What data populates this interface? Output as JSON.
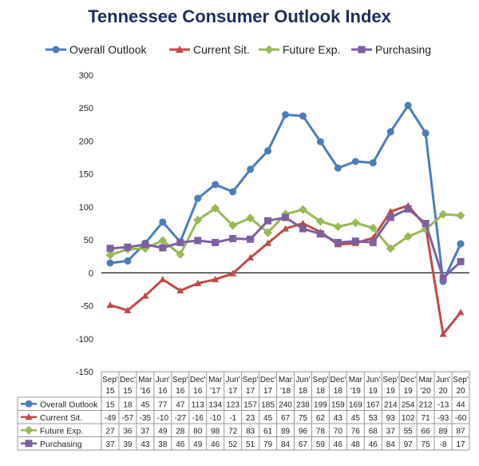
{
  "chart_data": {
    "type": "line",
    "title": "Tennessee Consumer Outlook Index",
    "ylim": [
      -150,
      300
    ],
    "yticks": [
      300,
      250,
      200,
      150,
      100,
      50,
      0,
      -50,
      -100,
      -150
    ],
    "grid": false,
    "legend_position": "top",
    "categories": [
      [
        "Sep'",
        "15"
      ],
      [
        "Dec'",
        "15"
      ],
      [
        "Mar",
        "'16"
      ],
      [
        "Jun'",
        "16"
      ],
      [
        "Sep'",
        "16"
      ],
      [
        "Dec'",
        "16"
      ],
      [
        "Mar",
        "'17"
      ],
      [
        "Jun'",
        "17"
      ],
      [
        "Sep'",
        "17"
      ],
      [
        "Dec'",
        "17"
      ],
      [
        "Mar",
        "'18"
      ],
      [
        "Jun'",
        "18"
      ],
      [
        "Sep'",
        "18"
      ],
      [
        "Dec'",
        "18"
      ],
      [
        "Mar",
        "'19"
      ],
      [
        "Jun'",
        "19"
      ],
      [
        "Sep'",
        "19"
      ],
      [
        "Dec'",
        "19"
      ],
      [
        "Mar",
        "'20"
      ],
      [
        "Jun'",
        "20"
      ],
      [
        "Sep'",
        "20"
      ]
    ],
    "series": [
      {
        "name": "Overall Outlook",
        "color": "#4a7ebb",
        "marker": "circle",
        "values": [
          15,
          18,
          45,
          77,
          47,
          113,
          134,
          123,
          157,
          185,
          240,
          238,
          199,
          159,
          169,
          167,
          214,
          254,
          212,
          -13,
          44
        ]
      },
      {
        "name": "Current Sit.",
        "color": "#be4b48",
        "marker": "triangle",
        "values": [
          -49,
          -57,
          -35,
          -10,
          -27,
          -16,
          -10,
          -1,
          23,
          45,
          67,
          75,
          62,
          43,
          45,
          53,
          93,
          102,
          71,
          -93,
          -60
        ]
      },
      {
        "name": "Future Exp.",
        "color": "#98b954",
        "marker": "diamond",
        "values": [
          27,
          36,
          37,
          49,
          28,
          80,
          98,
          72,
          83,
          61,
          89,
          96,
          78,
          70,
          76,
          68,
          37,
          55,
          66,
          89,
          87
        ]
      },
      {
        "name": "Purchasing",
        "color": "#7d60a0",
        "marker": "square",
        "values": [
          37,
          39,
          43,
          38,
          46,
          49,
          46,
          52,
          51,
          79,
          84,
          67,
          59,
          46,
          48,
          46,
          84,
          97,
          75,
          -8,
          17
        ]
      }
    ]
  }
}
